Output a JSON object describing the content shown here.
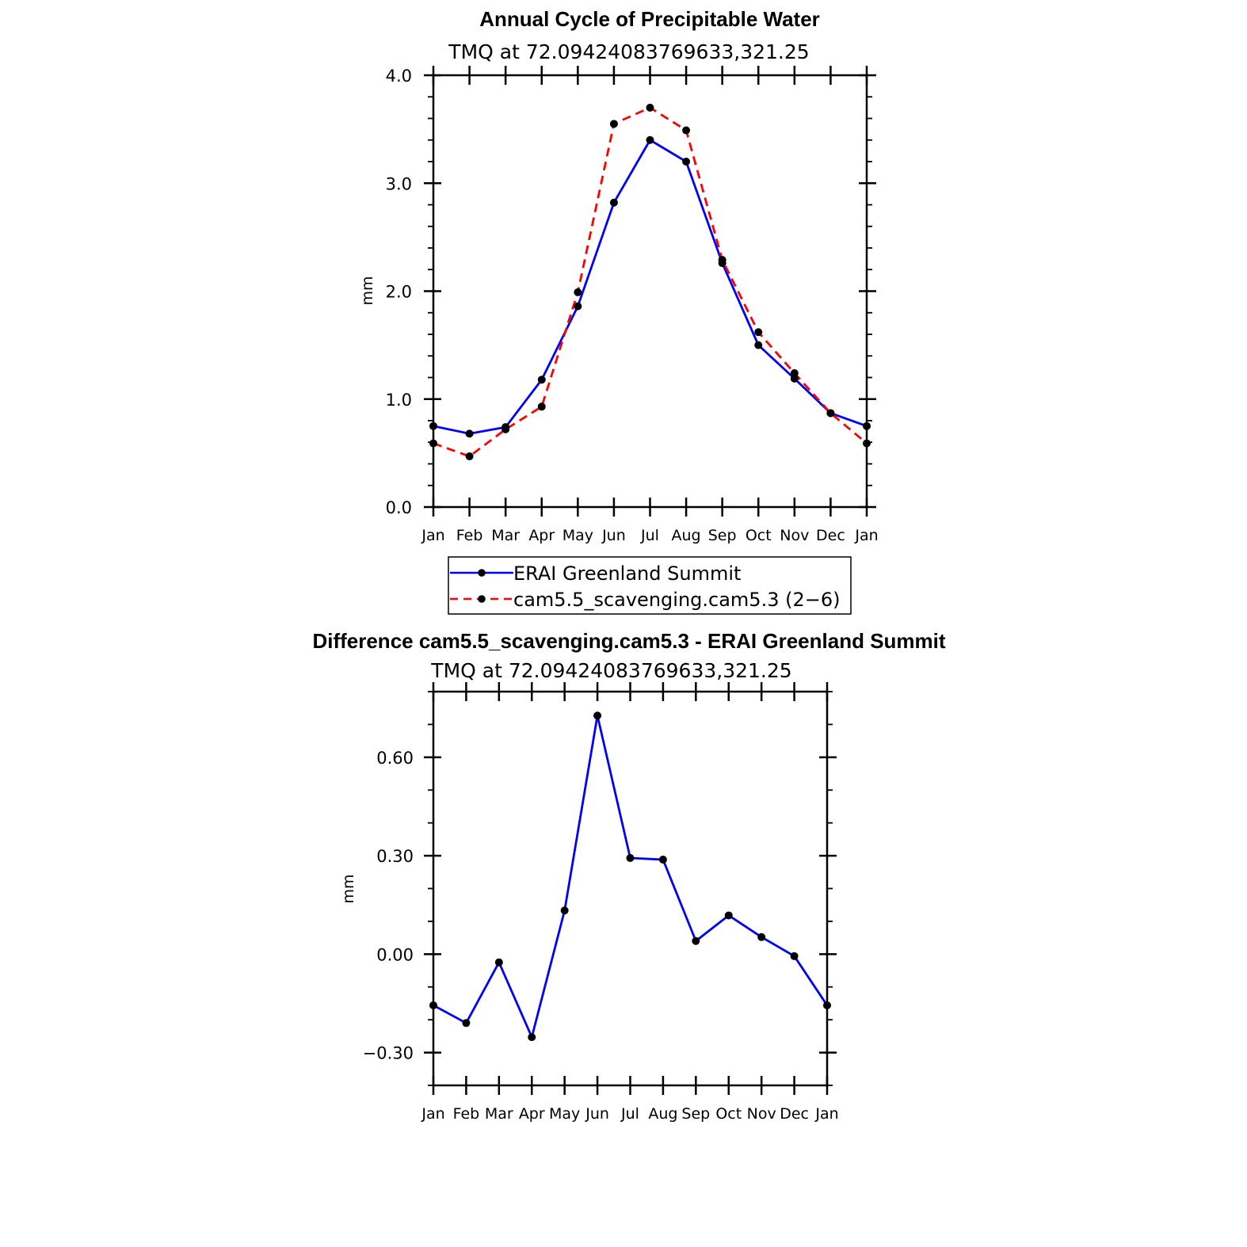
{
  "chart_data": [
    {
      "type": "line",
      "title": "Annual Cycle of Precipitable Water",
      "subtitle": "TMQ at 72.09424083769633,321.25",
      "xlabel": "",
      "ylabel": "mm",
      "categories": [
        "Jan",
        "Feb",
        "Mar",
        "Apr",
        "May",
        "Jun",
        "Jul",
        "Aug",
        "Sep",
        "Oct",
        "Nov",
        "Dec",
        "Jan"
      ],
      "ylim": [
        0.0,
        4.0
      ],
      "yticks": [
        0.0,
        1.0,
        2.0,
        3.0,
        4.0
      ],
      "ytick_labels": [
        "0.0",
        "1.0",
        "2.0",
        "3.0",
        "4.0"
      ],
      "grid": false,
      "legend_position": "bottom",
      "series": [
        {
          "name": "ERAI Greenland Summit",
          "color": "#0000ff",
          "dash": "solid",
          "values": [
            0.75,
            0.68,
            0.74,
            1.18,
            1.86,
            2.82,
            3.4,
            3.2,
            2.26,
            1.5,
            1.19,
            0.87,
            0.75
          ]
        },
        {
          "name": "cam5.5_scavenging.cam5.3 (2−6)",
          "color": "#ff0000",
          "dash": "dashed",
          "values": [
            0.59,
            0.47,
            0.72,
            0.93,
            1.99,
            3.55,
            3.7,
            3.49,
            2.29,
            1.62,
            1.24,
            0.87,
            0.59
          ]
        }
      ]
    },
    {
      "type": "line",
      "title": "Difference cam5.5_scavenging.cam5.3 - ERAI Greenland Summit",
      "subtitle": "TMQ at 72.09424083769633,321.25",
      "xlabel": "",
      "ylabel": "mm",
      "categories": [
        "Jan",
        "Feb",
        "Mar",
        "Apr",
        "May",
        "Jun",
        "Jul",
        "Aug",
        "Sep",
        "Oct",
        "Nov",
        "Dec",
        "Jan"
      ],
      "ylim": [
        -0.4,
        0.8
      ],
      "yticks": [
        -0.3,
        0.0,
        0.3,
        0.6
      ],
      "ytick_labels": [
        "−0.30",
        "0.00",
        "0.30",
        "0.60"
      ],
      "grid": false,
      "series": [
        {
          "name": "",
          "color": "#0000ff",
          "dash": "solid",
          "values": [
            -0.156,
            -0.21,
            -0.025,
            -0.253,
            0.133,
            0.727,
            0.293,
            0.288,
            0.04,
            0.118,
            0.052,
            -0.006,
            -0.156
          ]
        }
      ]
    }
  ]
}
